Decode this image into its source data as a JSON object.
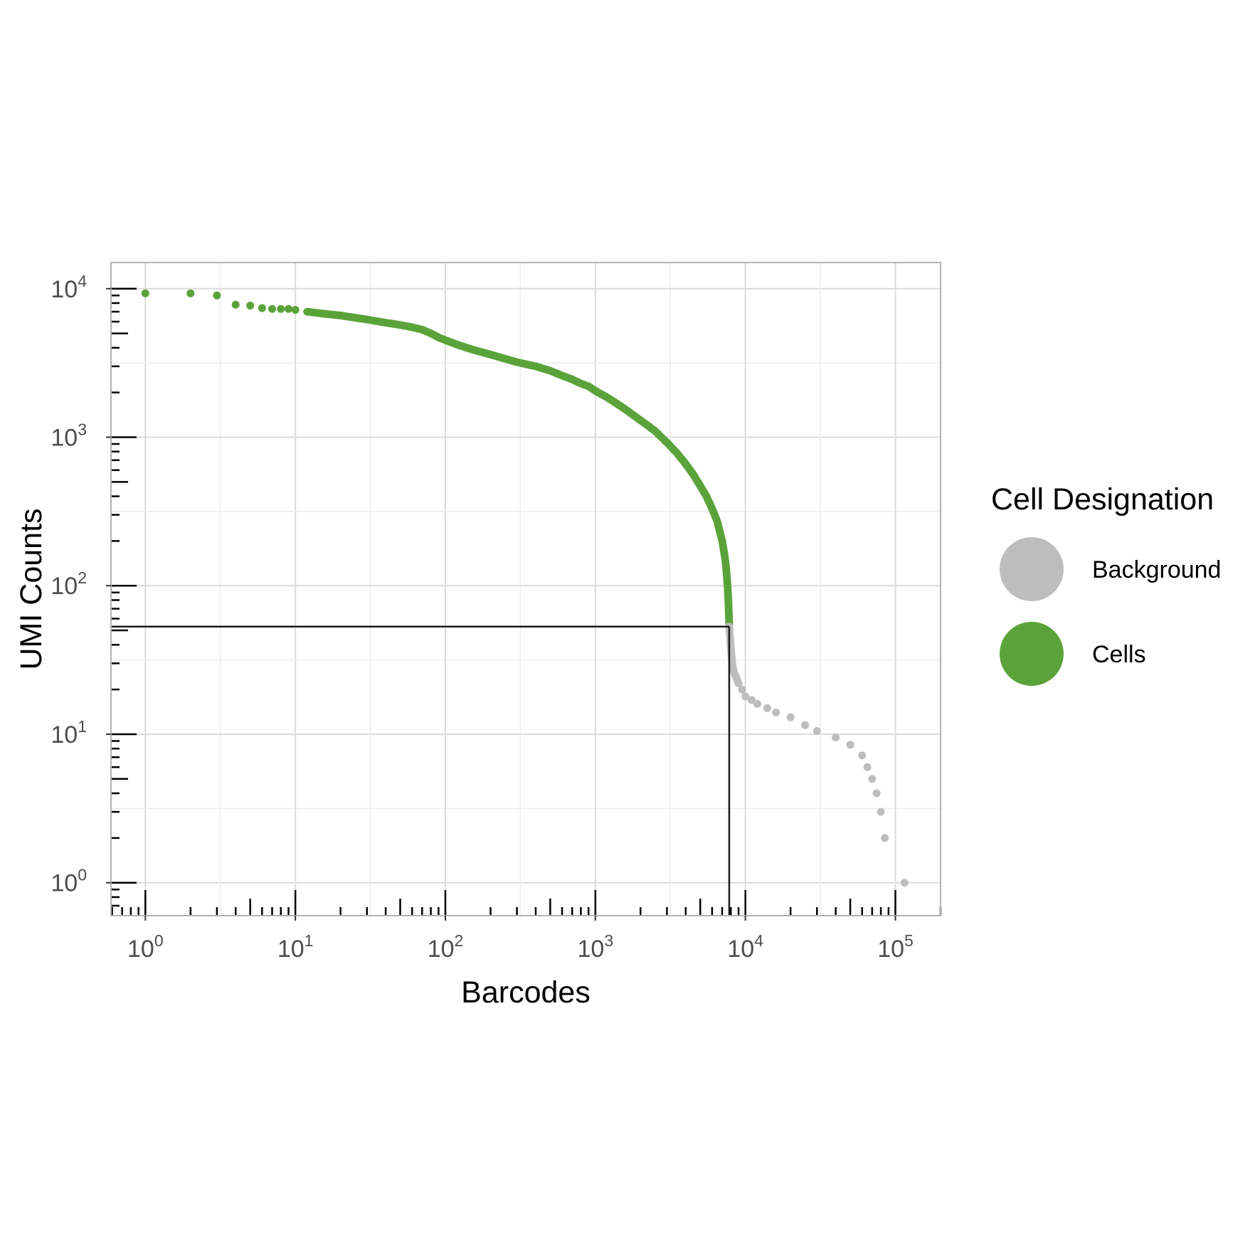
{
  "chart_data": {
    "type": "scatter",
    "xlabel": "Barcodes",
    "ylabel": "UMI Counts",
    "x_scale": "log10",
    "y_scale": "log10",
    "xlim": [
      0.59,
      200000
    ],
    "ylim": [
      0.6,
      15000
    ],
    "x_ticks": [
      {
        "base": "10",
        "exp": "0",
        "value": 1
      },
      {
        "base": "10",
        "exp": "1",
        "value": 10
      },
      {
        "base": "10",
        "exp": "2",
        "value": 100
      },
      {
        "base": "10",
        "exp": "3",
        "value": 1000
      },
      {
        "base": "10",
        "exp": "4",
        "value": 10000
      },
      {
        "base": "10",
        "exp": "5",
        "value": 100000
      }
    ],
    "y_ticks": [
      {
        "base": "10",
        "exp": "0",
        "value": 1
      },
      {
        "base": "10",
        "exp": "1",
        "value": 10
      },
      {
        "base": "10",
        "exp": "2",
        "value": 100
      },
      {
        "base": "10",
        "exp": "3",
        "value": 1000
      },
      {
        "base": "10",
        "exp": "4",
        "value": 10000
      }
    ],
    "grid": true,
    "rug": true,
    "legend": {
      "title": "Cell Designation",
      "placement": "right",
      "entries": [
        {
          "label": "Background",
          "color": "#bdbdbd"
        },
        {
          "label": "Cells",
          "color": "#5aa33a"
        }
      ]
    },
    "threshold": {
      "x": 7800,
      "y": 53,
      "color": "#1a1a1a"
    },
    "series": [
      {
        "name": "Cells",
        "color": "#5aa33a",
        "points": [
          [
            1,
            9300
          ],
          [
            2,
            9300
          ],
          [
            3,
            9000
          ],
          [
            4,
            7800
          ],
          [
            5,
            7700
          ],
          [
            6,
            7400
          ],
          [
            7,
            7300
          ],
          [
            8,
            7300
          ],
          [
            9,
            7300
          ],
          [
            10,
            7200
          ],
          [
            12,
            7000
          ],
          [
            15,
            6800
          ],
          [
            20,
            6600
          ],
          [
            30,
            6200
          ],
          [
            40,
            5900
          ],
          [
            50,
            5700
          ],
          [
            60,
            5500
          ],
          [
            70,
            5300
          ],
          [
            80,
            5000
          ],
          [
            90,
            4700
          ],
          [
            100,
            4500
          ],
          [
            120,
            4200
          ],
          [
            150,
            3900
          ],
          [
            200,
            3600
          ],
          [
            300,
            3200
          ],
          [
            400,
            3000
          ],
          [
            500,
            2800
          ],
          [
            600,
            2600
          ],
          [
            700,
            2450
          ],
          [
            800,
            2300
          ],
          [
            900,
            2200
          ],
          [
            1000,
            2050
          ],
          [
            1200,
            1850
          ],
          [
            1500,
            1600
          ],
          [
            2000,
            1300
          ],
          [
            2500,
            1100
          ],
          [
            3000,
            920
          ],
          [
            3500,
            780
          ],
          [
            4000,
            660
          ],
          [
            4500,
            560
          ],
          [
            5000,
            470
          ],
          [
            5500,
            400
          ],
          [
            6000,
            330
          ],
          [
            6500,
            270
          ],
          [
            7000,
            200
          ],
          [
            7200,
            170
          ],
          [
            7400,
            140
          ],
          [
            7500,
            120
          ],
          [
            7600,
            100
          ],
          [
            7700,
            80
          ],
          [
            7800,
            55
          ]
        ]
      },
      {
        "name": "Background",
        "color": "#bdbdbd",
        "points": [
          [
            7800,
            53
          ],
          [
            7900,
            45
          ],
          [
            8000,
            38
          ],
          [
            8100,
            33
          ],
          [
            8200,
            29
          ],
          [
            8400,
            26
          ],
          [
            8700,
            24
          ],
          [
            9000,
            22
          ],
          [
            9500,
            20
          ],
          [
            10000,
            18
          ],
          [
            11000,
            17
          ],
          [
            12000,
            16
          ],
          [
            14000,
            15
          ],
          [
            16000,
            14
          ],
          [
            20000,
            13
          ],
          [
            25000,
            11.5
          ],
          [
            30000,
            10.5
          ],
          [
            40000,
            9.5
          ],
          [
            50000,
            8.5
          ],
          [
            60000,
            7.2
          ],
          [
            65000,
            6
          ],
          [
            70000,
            5
          ],
          [
            75000,
            4
          ],
          [
            80000,
            3
          ],
          [
            85000,
            2
          ],
          [
            115000,
            1
          ]
        ]
      }
    ]
  }
}
